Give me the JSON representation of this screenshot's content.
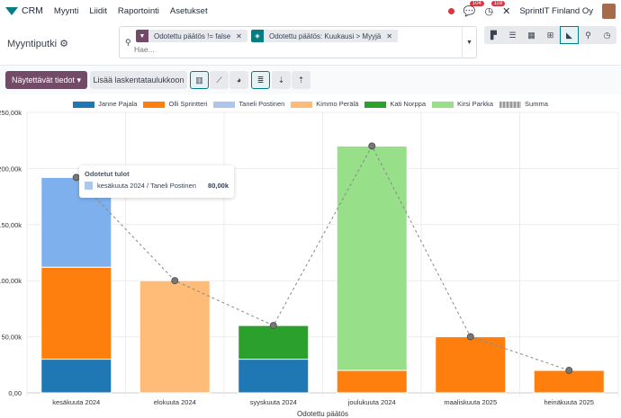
{
  "nav": {
    "app": "CRM",
    "menu": [
      "Myynti",
      "Liidit",
      "Raportointi",
      "Asetukset"
    ],
    "messages_count": "104",
    "activities_count": "118",
    "company": "SprintIT Finland Oy"
  },
  "control": {
    "title": "Myyntiputki",
    "facets": [
      "Odotettu päätös != false",
      "Odotettu päätös: Kuukausi > Myyjä"
    ],
    "search_placeholder": "Hae...",
    "views": [
      "kanban",
      "list",
      "calendar",
      "pivot",
      "graph",
      "map",
      "activity"
    ],
    "active_view": "graph"
  },
  "toolbar": {
    "measures": "Näytettävät tiedot",
    "insert": "Lisää laskentataulukkoon"
  },
  "tooltip": {
    "title": "Odotetut tulot",
    "label": "kesäkuuta 2024 / Taneli Postinen",
    "value": "80,00k",
    "color": "#aec7e8"
  },
  "chart_data": {
    "type": "bar",
    "stacked": true,
    "grid": true,
    "legend": "top",
    "xlabel": "Odotettu päätös",
    "categories": [
      "kesäkuuta 2024",
      "elokuuta 2024",
      "syyskuuta 2024",
      "joulukuuta 2024",
      "maaliskuuta 2025",
      "heinäkuuta 2025"
    ],
    "ylim": [
      0,
      250000
    ],
    "yticks": [
      "0,00",
      "50,00k",
      "100,00k",
      "150,00k",
      "200,00k",
      "250,00k"
    ],
    "series": [
      {
        "name": "Janne Pajala",
        "color": "#1f77b4",
        "values": [
          30000,
          0,
          30000,
          0,
          0,
          0
        ]
      },
      {
        "name": "Olli Sprintteri",
        "color": "#ff7f0e",
        "values": [
          82000,
          0,
          0,
          20000,
          50000,
          20000
        ]
      },
      {
        "name": "Taneli Postinen",
        "color": "#7eb0ed",
        "values": [
          80000,
          0,
          0,
          0,
          0,
          0
        ]
      },
      {
        "name": "Kimmo Perälä",
        "color": "#ffbb78",
        "values": [
          0,
          100000,
          0,
          0,
          0,
          0
        ]
      },
      {
        "name": "Kati Norppa",
        "color": "#2ca02c",
        "values": [
          0,
          0,
          30000,
          0,
          0,
          0
        ]
      },
      {
        "name": "Kirsi Parkka",
        "color": "#98df8a",
        "values": [
          0,
          0,
          0,
          200000,
          0,
          0
        ]
      }
    ],
    "sum": {
      "name": "Summa",
      "color": "#888888",
      "values": [
        192000,
        100000,
        60000,
        220000,
        50000,
        20000
      ]
    }
  }
}
